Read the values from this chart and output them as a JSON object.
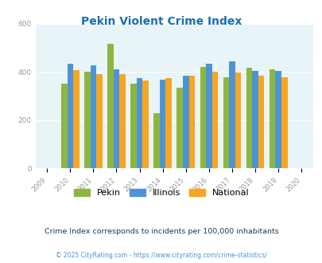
{
  "title": "Pekin Violent Crime Index",
  "years": [
    2010,
    2011,
    2012,
    2013,
    2014,
    2015,
    2016,
    2017,
    2018,
    2019
  ],
  "pekin": [
    350,
    400,
    515,
    350,
    228,
    333,
    422,
    378,
    418,
    412
  ],
  "illinois": [
    435,
    428,
    410,
    373,
    368,
    385,
    435,
    443,
    405,
    405
  ],
  "national": [
    407,
    390,
    390,
    365,
    373,
    383,
    400,
    398,
    383,
    379
  ],
  "pekin_color": "#8db641",
  "illinois_color": "#4d94d5",
  "national_color": "#f5a623",
  "bg_color": "#e8f4f8",
  "title_color": "#1a6fad",
  "ylim": [
    0,
    600
  ],
  "yticks": [
    0,
    200,
    400,
    600
  ],
  "legend_labels": [
    "Pekin",
    "Illinois",
    "National"
  ],
  "footnote1": "Crime Index corresponds to incidents per 100,000 inhabitants",
  "footnote2": "© 2025 CityRating.com - https://www.cityrating.com/crime-statistics/",
  "footnote1_color": "#1a3a5c",
  "footnote2_color": "#4d94d5",
  "tick_color": "#999999",
  "bar_width": 0.26
}
